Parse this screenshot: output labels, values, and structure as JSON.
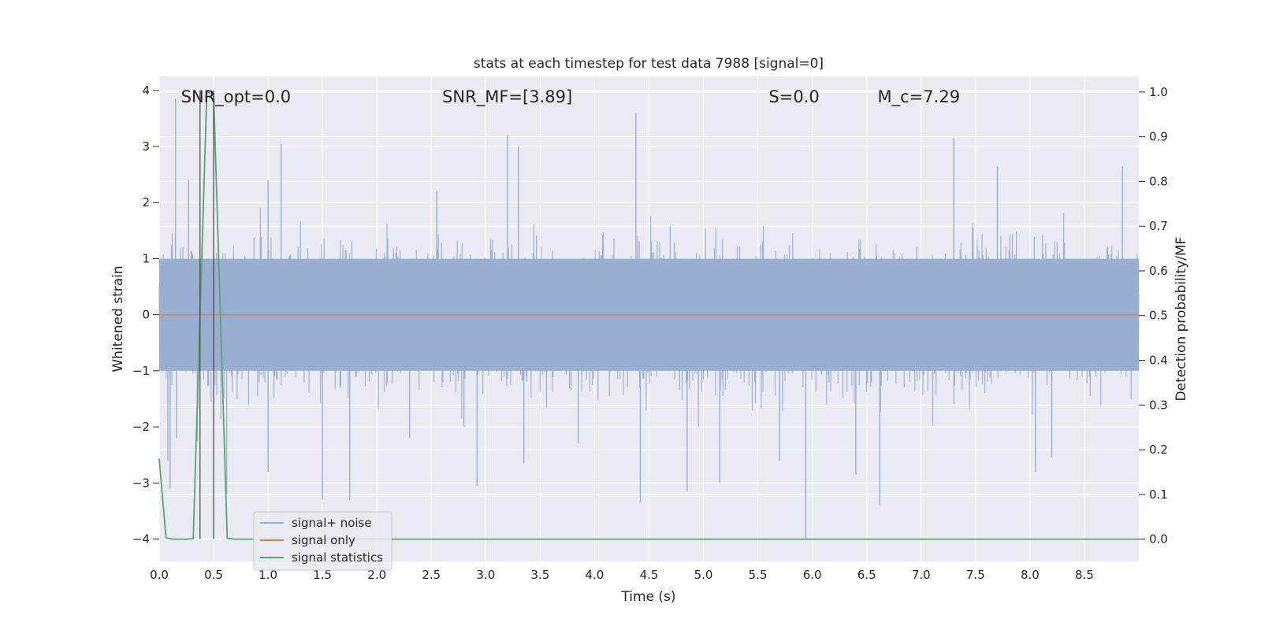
{
  "chart_data": {
    "type": "line",
    "title": "stats at each timestep for test data 7988 [signal=0]",
    "xlabel": "Time (s)",
    "ylabel_left": "Whitened strain",
    "ylabel_right": "Detection probability/MF",
    "xlim": [
      0.0,
      9.0
    ],
    "ylim_left": [
      -4.4,
      4.25
    ],
    "ylim_right": [
      -0.05,
      1.035
    ],
    "xticks": [
      "0.0",
      "0.5",
      "1.0",
      "1.5",
      "2.0",
      "2.5",
      "3.0",
      "3.5",
      "4.0",
      "4.5",
      "5.0",
      "5.5",
      "6.0",
      "6.5",
      "7.0",
      "7.5",
      "8.0",
      "8.5"
    ],
    "yticks_left": [
      "4",
      "3",
      "2",
      "1",
      "0",
      "−1",
      "−2",
      "−3",
      "−4"
    ],
    "yticks_right": [
      "1.0",
      "0.9",
      "0.8",
      "0.7",
      "0.6",
      "0.5",
      "0.4",
      "0.3",
      "0.2",
      "0.1",
      "0.0"
    ],
    "grid": true,
    "legend_position": "lower-left",
    "annotations": [
      {
        "text": "SNR_opt=0.0",
        "x": 0.2,
        "y": 3.9
      },
      {
        "text": "SNR_MF=[3.89]",
        "x": 2.6,
        "y": 3.9
      },
      {
        "text": "S=0.0",
        "x": 5.6,
        "y": 3.9
      },
      {
        "text": "M_c=7.29",
        "x": 6.6,
        "y": 3.9
      }
    ],
    "vlines": [
      0.375,
      0.5
    ],
    "series": [
      {
        "name": "signal+ noise",
        "axis": "left",
        "color": "#9aaed1",
        "kind": "noise",
        "typical_range": [
          -1.6,
          1.5
        ],
        "spikes": [
          {
            "x": 0.15,
            "y": 3.85
          },
          {
            "x": 0.16,
            "y": -2.2
          },
          {
            "x": 0.08,
            "y": -2.6
          },
          {
            "x": 0.1,
            "y": -3.1
          },
          {
            "x": 0.27,
            "y": 2.4
          },
          {
            "x": 0.35,
            "y": -2.25
          },
          {
            "x": 0.62,
            "y": -3.2
          },
          {
            "x": 1.0,
            "y": 2.4
          },
          {
            "x": 1.0,
            "y": -2.8
          },
          {
            "x": 1.12,
            "y": 3.05
          },
          {
            "x": 1.5,
            "y": -3.3
          },
          {
            "x": 1.75,
            "y": -3.3
          },
          {
            "x": 2.3,
            "y": -2.2
          },
          {
            "x": 2.55,
            "y": 2.2
          },
          {
            "x": 2.8,
            "y": -2.0
          },
          {
            "x": 2.92,
            "y": -3.05
          },
          {
            "x": 3.2,
            "y": 3.2
          },
          {
            "x": 3.3,
            "y": 3.0
          },
          {
            "x": 3.35,
            "y": -2.65
          },
          {
            "x": 3.85,
            "y": -2.3
          },
          {
            "x": 4.38,
            "y": 3.6
          },
          {
            "x": 4.42,
            "y": -3.35
          },
          {
            "x": 4.85,
            "y": -3.15
          },
          {
            "x": 5.15,
            "y": -3.0
          },
          {
            "x": 5.7,
            "y": -2.6
          },
          {
            "x": 5.94,
            "y": -4.0
          },
          {
            "x": 6.4,
            "y": -2.85
          },
          {
            "x": 6.62,
            "y": -3.4
          },
          {
            "x": 7.3,
            "y": 3.15
          },
          {
            "x": 7.7,
            "y": 2.65
          },
          {
            "x": 8.05,
            "y": -2.8
          },
          {
            "x": 8.85,
            "y": 2.65
          },
          {
            "x": 8.2,
            "y": -2.55
          }
        ]
      },
      {
        "name": "signal only",
        "axis": "left",
        "color": "#dd8452",
        "x": [
          0.0,
          9.0
        ],
        "y": [
          0.0,
          0.0
        ]
      },
      {
        "name": "signal statistics",
        "axis": "right",
        "color": "#55a868",
        "x": [
          0.0,
          0.0625,
          0.125,
          0.1875,
          0.25,
          0.3125,
          0.375,
          0.4375,
          0.5,
          0.5625,
          0.625,
          0.6875,
          0.75,
          9.0
        ],
        "y": [
          0.18,
          0.003,
          0.0,
          0.0,
          0.0,
          0.001,
          0.5,
          1.0,
          0.995,
          0.5,
          0.002,
          0.0,
          0.0,
          0.0
        ]
      }
    ]
  }
}
